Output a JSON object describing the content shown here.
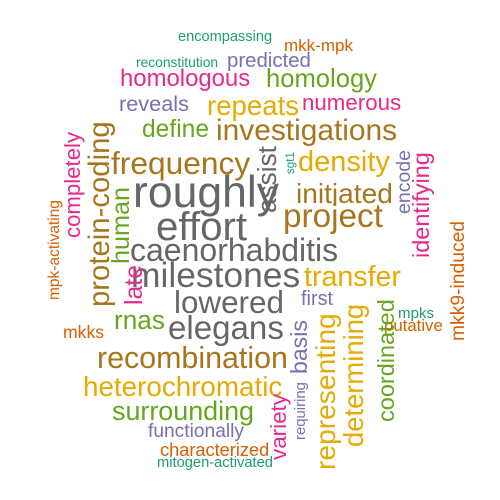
{
  "colors": {
    "teal": "#1b9e77",
    "orange": "#d95f02",
    "purple": "#7570b3",
    "magenta": "#e7298a",
    "green": "#66a61e",
    "gold": "#e6ab02",
    "brown": "#a6761d",
    "gray": "#666666"
  },
  "words": [
    {
      "text": "encompassing",
      "color": "teal",
      "rotated": false
    },
    {
      "text": "mkk-mpk",
      "color": "orange",
      "rotated": false
    },
    {
      "text": "reconstitution",
      "color": "teal",
      "rotated": false
    },
    {
      "text": "predicted",
      "color": "purple",
      "rotated": false
    },
    {
      "text": "homologous",
      "color": "magenta",
      "rotated": false
    },
    {
      "text": "homology",
      "color": "green",
      "rotated": false
    },
    {
      "text": "reveals",
      "color": "purple",
      "rotated": false
    },
    {
      "text": "repeats",
      "color": "gold",
      "rotated": false
    },
    {
      "text": "numerous",
      "color": "magenta",
      "rotated": false
    },
    {
      "text": "define",
      "color": "green",
      "rotated": false
    },
    {
      "text": "investigations",
      "color": "brown",
      "rotated": false
    },
    {
      "text": "frequency",
      "color": "brown",
      "rotated": false
    },
    {
      "text": "assist",
      "color": "gray",
      "rotated": true
    },
    {
      "text": "sgt1",
      "color": "teal",
      "rotated": true
    },
    {
      "text": "density",
      "color": "gold",
      "rotated": false
    },
    {
      "text": "encode",
      "color": "purple",
      "rotated": true
    },
    {
      "text": "identifying",
      "color": "magenta",
      "rotated": true
    },
    {
      "text": "protein-coding",
      "color": "brown",
      "rotated": true
    },
    {
      "text": "completely",
      "color": "magenta",
      "rotated": true
    },
    {
      "text": "roughly",
      "color": "gray",
      "rotated": false
    },
    {
      "text": "initiated",
      "color": "brown",
      "rotated": false
    },
    {
      "text": "effort",
      "color": "gray",
      "rotated": false
    },
    {
      "text": "project",
      "color": "brown",
      "rotated": false
    },
    {
      "text": "human",
      "color": "green",
      "rotated": true
    },
    {
      "text": "caenorhabditis",
      "color": "gray",
      "rotated": false
    },
    {
      "text": "mpk-activating",
      "color": "orange",
      "rotated": true
    },
    {
      "text": "milestones",
      "color": "gray",
      "rotated": false
    },
    {
      "text": "transfer",
      "color": "gold",
      "rotated": false
    },
    {
      "text": "mkk9-induced",
      "color": "orange",
      "rotated": true
    },
    {
      "text": "late",
      "color": "magenta",
      "rotated": true
    },
    {
      "text": "lowered",
      "color": "gray",
      "rotated": false
    },
    {
      "text": "first",
      "color": "purple",
      "rotated": false
    },
    {
      "text": "mpks",
      "color": "teal",
      "rotated": false
    },
    {
      "text": "rnas",
      "color": "green",
      "rotated": false
    },
    {
      "text": "elegans",
      "color": "gray",
      "rotated": false
    },
    {
      "text": "putative",
      "color": "orange",
      "rotated": false
    },
    {
      "text": "mkks",
      "color": "orange",
      "rotated": false
    },
    {
      "text": "basis",
      "color": "purple",
      "rotated": true
    },
    {
      "text": "representing",
      "color": "gold",
      "rotated": true
    },
    {
      "text": "determining",
      "color": "gold",
      "rotated": true
    },
    {
      "text": "coordinated",
      "color": "green",
      "rotated": true
    },
    {
      "text": "recombination",
      "color": "brown",
      "rotated": false
    },
    {
      "text": "heterochromatic",
      "color": "gold",
      "rotated": false
    },
    {
      "text": "surrounding",
      "color": "green",
      "rotated": false
    },
    {
      "text": "requiring",
      "color": "purple",
      "rotated": true
    },
    {
      "text": "variety",
      "color": "magenta",
      "rotated": true
    },
    {
      "text": "functionally",
      "color": "purple",
      "rotated": false
    },
    {
      "text": "characterized",
      "color": "orange",
      "rotated": false
    },
    {
      "text": "mitogen-activated",
      "color": "teal",
      "rotated": false
    }
  ]
}
